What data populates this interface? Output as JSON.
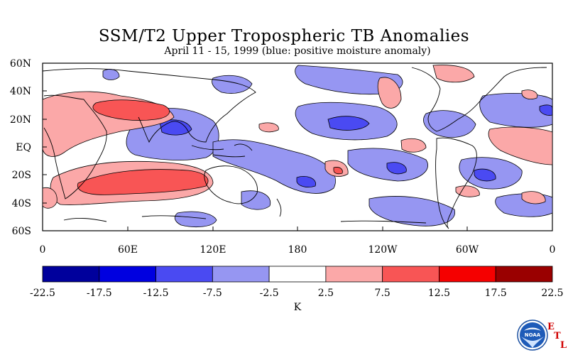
{
  "title": "SSM/T2 Upper Tropospheric TB Anomalies",
  "subtitle": "April 11 - 15, 1999 (blue: positive moisture anomaly)",
  "lat_labels": [
    "60N",
    "40N",
    "20N",
    "EQ",
    "20S",
    "40S",
    "60S"
  ],
  "lon_labels": [
    "0",
    "60E",
    "120E",
    "180",
    "120W",
    "60W",
    "0"
  ],
  "colorbar": {
    "unit": "K",
    "tick_labels": [
      "-22.5",
      "-17.5",
      "-12.5",
      "-7.5",
      "-2.5",
      "2.5",
      "7.5",
      "12.5",
      "17.5",
      "22.5"
    ],
    "colors": [
      "#00009c",
      "#0000e0",
      "#4a4af2",
      "#9696f2",
      "#ffffff",
      "#fba8a8",
      "#f85555",
      "#f50000",
      "#9a0000"
    ]
  },
  "logo": {
    "name": "NOAA",
    "lettering": "NOAA"
  },
  "lab_letters": [
    "E",
    "T",
    "L"
  ]
}
